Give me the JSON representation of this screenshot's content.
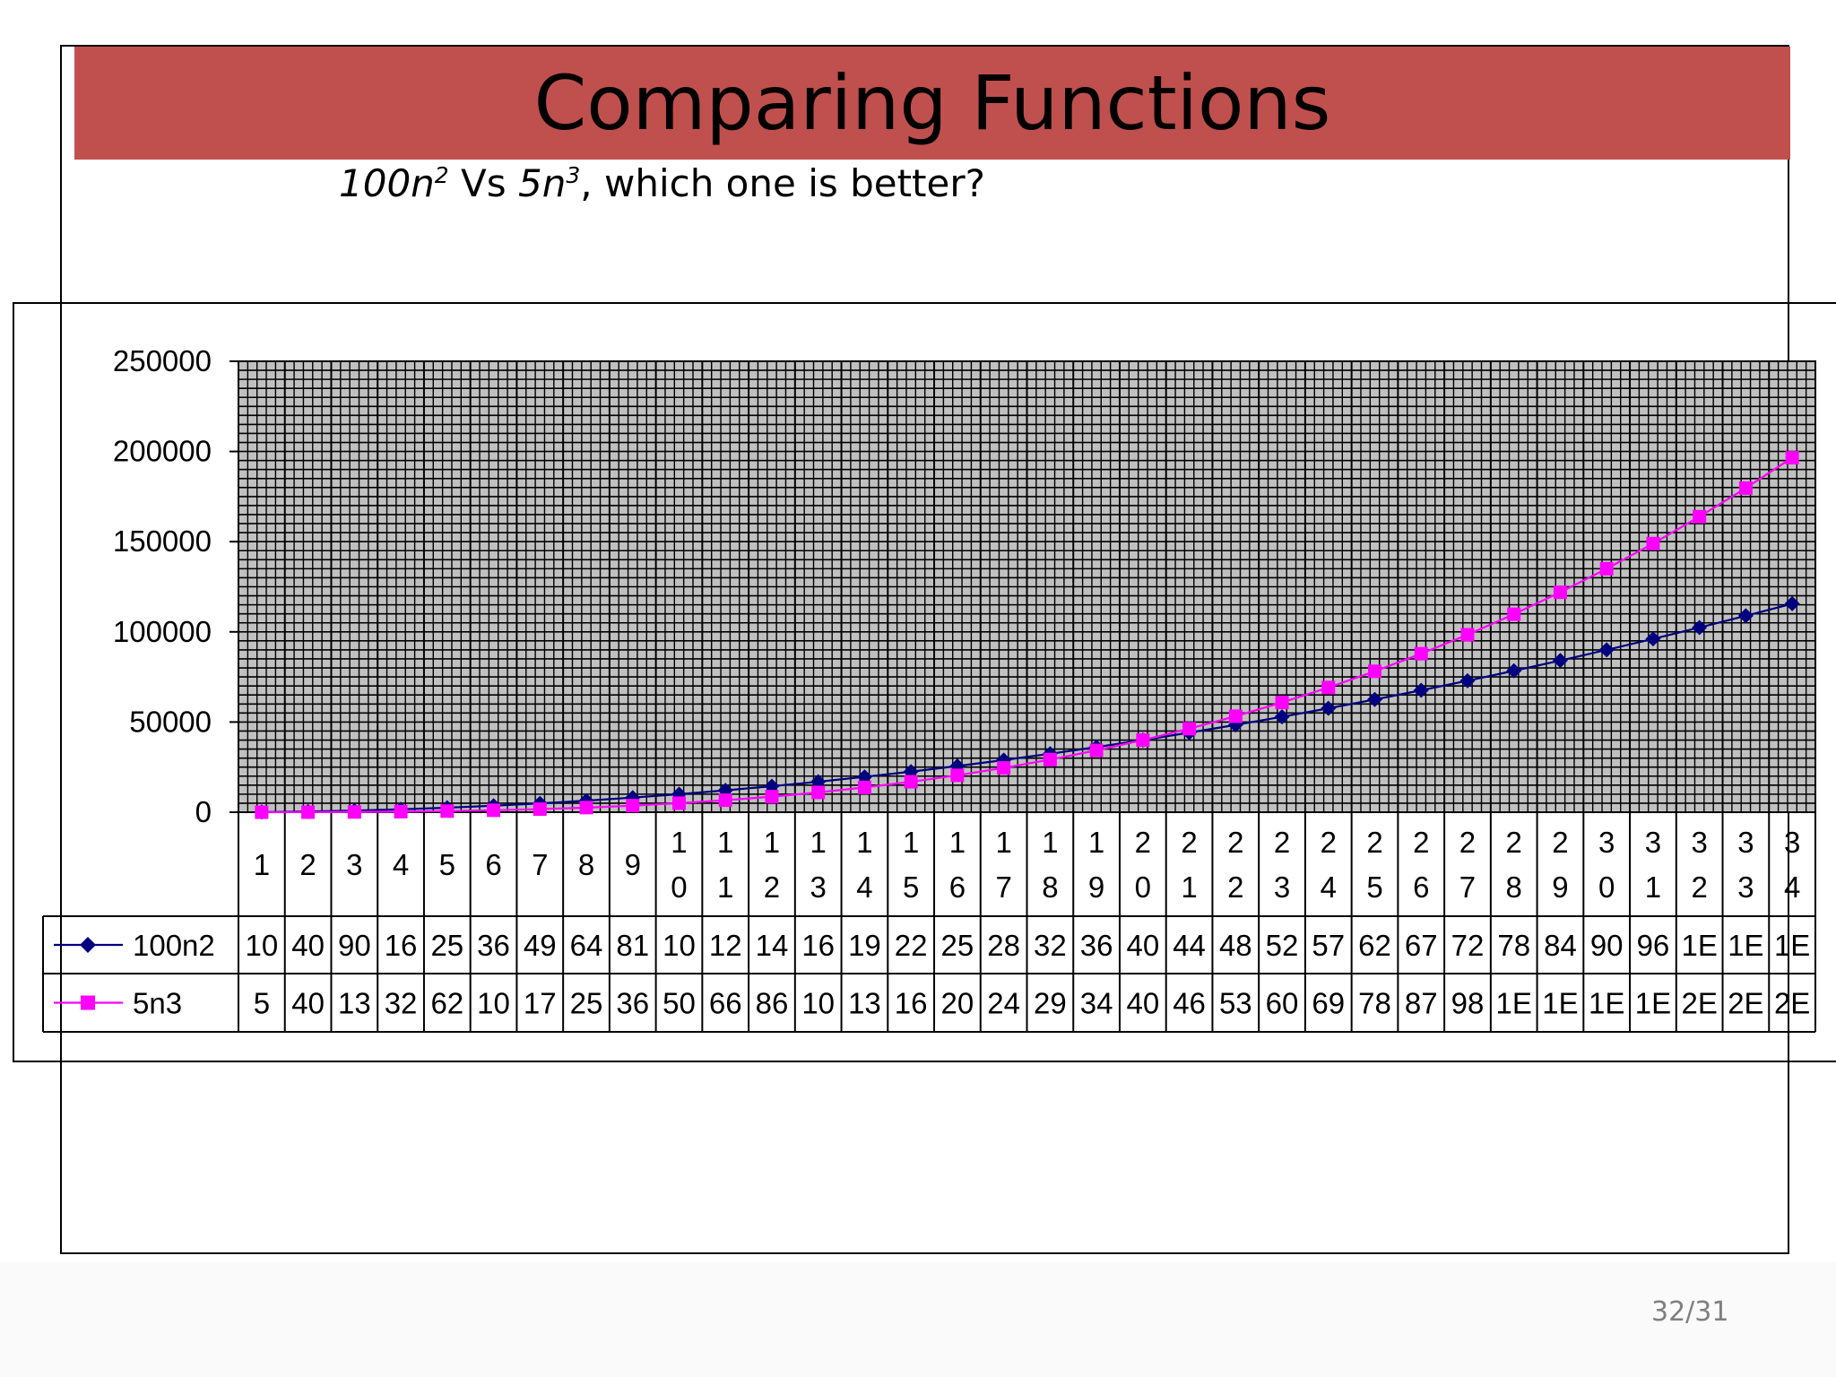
{
  "slide": {
    "title": "Comparing Functions",
    "subtitle": {
      "f1_base": "100n",
      "f1_exp": "2",
      "vs": " Vs ",
      "f2_base": "5n",
      "f2_exp": "3",
      "question": ", which one is better?"
    },
    "page_number": "32/31"
  },
  "colors": {
    "title_bar": "#c0504d",
    "plot_area": "#c0c0c0",
    "series_100n2": "#000080",
    "series_5n3": "#ff00ff"
  },
  "chart_data": {
    "type": "line",
    "title": "",
    "xlabel": "",
    "ylabel": "",
    "ylim": [
      0,
      250000
    ],
    "y_ticks": [
      "0",
      "50000",
      "100000",
      "150000",
      "200000",
      "250000"
    ],
    "grid": true,
    "legend": "in data table, left",
    "categories": [
      "1",
      "2",
      "3",
      "4",
      "5",
      "6",
      "7",
      "8",
      "9",
      "10",
      "11",
      "12",
      "13",
      "14",
      "15",
      "16",
      "17",
      "18",
      "19",
      "20",
      "21",
      "22",
      "23",
      "24",
      "25",
      "26",
      "27",
      "28",
      "29",
      "30",
      "31",
      "32",
      "33",
      "34"
    ],
    "series": [
      {
        "name": "100n2",
        "marker": "diamond",
        "values": [
          100,
          400,
          900,
          1600,
          2500,
          3600,
          4900,
          6400,
          8100,
          10000,
          12100,
          14400,
          16900,
          19600,
          22500,
          25600,
          28900,
          32400,
          36100,
          40000,
          44100,
          48400,
          52900,
          57600,
          62500,
          67600,
          72900,
          78400,
          84100,
          90000,
          96100,
          102400,
          108900,
          115600
        ],
        "table_labels": [
          "10",
          "40",
          "90",
          "16",
          "25",
          "36",
          "49",
          "64",
          "81",
          "10",
          "12",
          "14",
          "16",
          "19",
          "22",
          "25",
          "28",
          "32",
          "36",
          "40",
          "44",
          "48",
          "52",
          "57",
          "62",
          "67",
          "72",
          "78",
          "84",
          "90",
          "96",
          "1E",
          "1E",
          "1E"
        ]
      },
      {
        "name": "5n3",
        "marker": "square",
        "values": [
          5,
          40,
          135,
          320,
          625,
          1080,
          1715,
          2560,
          3645,
          5000,
          6655,
          8640,
          10985,
          13720,
          16875,
          20480,
          24565,
          29160,
          34295,
          40000,
          46305,
          53240,
          60835,
          69120,
          78125,
          87880,
          98415,
          109760,
          121945,
          135000,
          148955,
          163840,
          179685,
          196520
        ],
        "table_labels": [
          "5",
          "40",
          "13",
          "32",
          "62",
          "10",
          "17",
          "25",
          "36",
          "50",
          "66",
          "86",
          "10",
          "13",
          "16",
          "20",
          "24",
          "29",
          "34",
          "40",
          "46",
          "53",
          "60",
          "69",
          "78",
          "87",
          "98",
          "1E",
          "1E",
          "1E",
          "1E",
          "2E",
          "2E",
          "2E"
        ]
      }
    ]
  }
}
